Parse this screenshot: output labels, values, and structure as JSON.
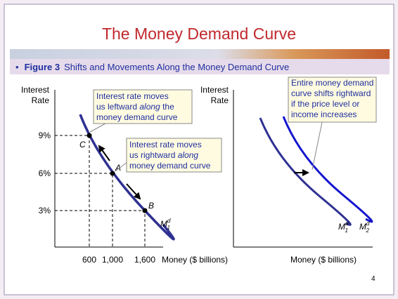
{
  "slide": {
    "title": "The Money Demand Curve",
    "caption": {
      "bullet": "•",
      "label": "Figure 3",
      "text": "Shifts and Movements Along the Money Demand Curve"
    },
    "page_number": "4"
  },
  "left_panel": {
    "y_axis_label": [
      "Interest",
      "Rate"
    ],
    "x_axis_label": "Money ($ billions)",
    "y_labels": [
      "9%",
      "6%",
      "3%"
    ],
    "x_labels": [
      "600",
      "1,000",
      "1,600"
    ],
    "points": [
      "C",
      "A",
      "B"
    ],
    "curve_label": {
      "base": "M",
      "sup": "d",
      "sub": "1"
    },
    "notes": [
      [
        [
          "Interest rate   moves"
        ],
        [
          "us leftward ",
          "along",
          " the"
        ],
        [
          "money demand curve"
        ]
      ],
      [
        [
          "Interest rate   moves"
        ],
        [
          "us rightward ",
          "along"
        ],
        [
          "money demand curve"
        ]
      ]
    ]
  },
  "right_panel": {
    "y_axis_label": [
      "Interest",
      "Rate"
    ],
    "x_axis_label": "Money ($ billions)",
    "curve_labels": [
      {
        "base": "M",
        "sup": "d",
        "sub": "1"
      },
      {
        "base": "M",
        "sup": "d",
        "sub": "2"
      }
    ],
    "note": [
      "Entire money demand",
      "curve shifts rightward",
      "if the price level or",
      "income increases"
    ]
  }
}
